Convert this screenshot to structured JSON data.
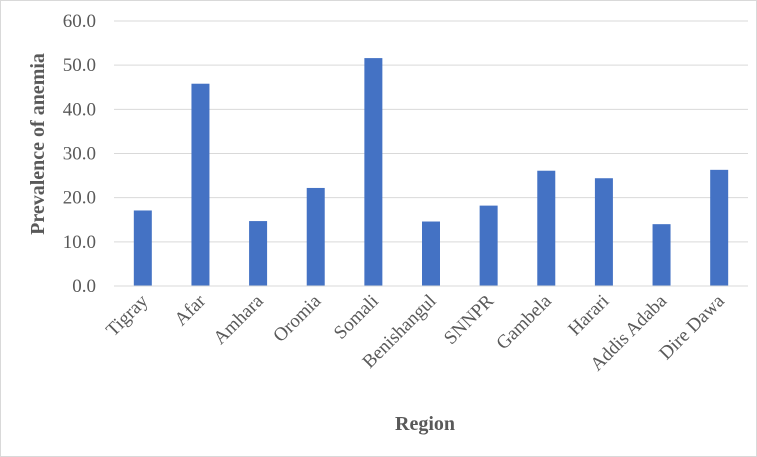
{
  "chart_data": {
    "type": "bar",
    "title": "",
    "xlabel": "Region",
    "ylabel": "Prevalence of anemia",
    "ylim": [
      0,
      60
    ],
    "yticks": [
      "0.0",
      "10.0",
      "20.0",
      "30.0",
      "40.0",
      "50.0",
      "60.0"
    ],
    "categories": [
      "Tigray",
      "Afar",
      "Amhara",
      "Oromia",
      "Somali",
      "Benishangul",
      "SNNPR",
      "Gambela",
      "Harari",
      "Addis Adaba",
      "Dire Dawa"
    ],
    "values": [
      17.1,
      45.8,
      14.7,
      22.2,
      51.6,
      14.6,
      18.2,
      26.1,
      24.4,
      14.0,
      26.3
    ],
    "bar_color": "#4472c4",
    "gridlines": true,
    "legend": "none"
  }
}
